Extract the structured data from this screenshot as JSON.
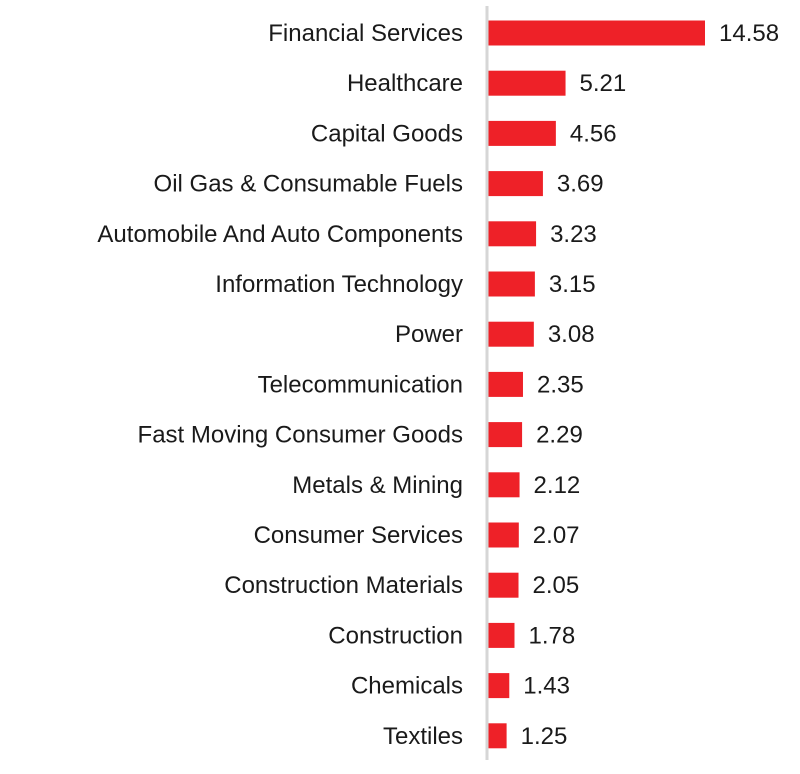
{
  "chart_data": {
    "type": "bar",
    "orientation": "horizontal",
    "categories": [
      "Financial Services",
      "Healthcare",
      "Capital Goods",
      "Oil Gas & Consumable Fuels",
      "Automobile And Auto Components",
      "Information Technology",
      "Power",
      "Telecommunication",
      "Fast Moving Consumer Goods",
      "Metals & Mining",
      "Consumer Services",
      "Construction Materials",
      "Construction",
      "Chemicals",
      "Textiles"
    ],
    "values": [
      14.58,
      5.21,
      4.56,
      3.69,
      3.23,
      3.15,
      3.08,
      2.35,
      2.29,
      2.12,
      2.07,
      2.05,
      1.78,
      1.43,
      1.25
    ],
    "value_labels": [
      "14.58",
      "5.21",
      "4.56",
      "3.69",
      "3.23",
      "3.15",
      "3.08",
      "2.35",
      "2.29",
      "2.12",
      "2.07",
      "2.05",
      "1.78",
      "1.43",
      "1.25"
    ],
    "title": "",
    "xlabel": "",
    "ylabel": "",
    "grid": false,
    "legend": "none",
    "colors": {
      "bar": "#ee2128",
      "axis": "#d6d6d6",
      "text": "#1a1a1a"
    }
  }
}
